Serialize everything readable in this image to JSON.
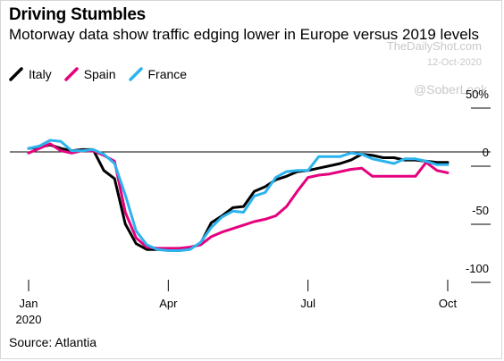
{
  "header": {
    "title": "Driving Stumbles",
    "subtitle": "Motorway data show traffic edging lower in Europe versus 2019 levels"
  },
  "watermark": {
    "line1": "TheDailyShot.com",
    "date": "12-Oct-2020",
    "handle": "@SoberLook"
  },
  "footer": {
    "source": "Source: Atlantia"
  },
  "chart_data": {
    "type": "line",
    "title": "Driving Stumbles",
    "subtitle": "Motorway data show traffic edging lower in Europe versus 2019 levels",
    "x_ticks": [
      {
        "label": "Jan",
        "sublabel": "2020",
        "week": 0
      },
      {
        "label": "Apr",
        "sublabel": "",
        "week": 13
      },
      {
        "label": "Jul",
        "sublabel": "",
        "week": 26
      },
      {
        "label": "Oct",
        "sublabel": "",
        "week": 39
      }
    ],
    "y_ticks": [
      50,
      0,
      -50,
      -100
    ],
    "y_tick_labels": [
      "50%",
      "0",
      "-50",
      "-100"
    ],
    "ylim": [
      -100,
      50
    ],
    "xlim": [
      0,
      39
    ],
    "grid": false,
    "legend_position": "top-left",
    "series": [
      {
        "name": "Italy",
        "color": "#000000",
        "x": [
          0,
          1,
          2,
          3,
          4,
          5,
          6,
          7,
          8,
          9,
          10,
          11,
          12,
          13,
          14,
          15,
          16,
          17,
          18,
          19,
          20,
          21,
          22,
          23,
          24,
          25,
          26,
          27,
          28,
          29,
          30,
          31,
          32,
          33,
          34,
          35,
          36,
          37,
          38,
          39
        ],
        "y": [
          3,
          4,
          6,
          3,
          1,
          2,
          2,
          -16,
          -23,
          -62,
          -79,
          -84,
          -84,
          -84,
          -85,
          -83,
          -79,
          -61,
          -55,
          -48,
          -47,
          -34,
          -30,
          -24,
          -21,
          -17,
          -16,
          -14,
          -12,
          -10,
          -7,
          -2,
          -3,
          -5,
          -5,
          -7,
          -7,
          -8,
          -9,
          -9
        ]
      },
      {
        "name": "Spain",
        "color": "#e5007d",
        "x": [
          0,
          1,
          2,
          3,
          4,
          5,
          6,
          7,
          8,
          9,
          10,
          11,
          12,
          13,
          14,
          15,
          16,
          17,
          18,
          19,
          20,
          21,
          22,
          23,
          24,
          25,
          26,
          27,
          28,
          29,
          30,
          31,
          32,
          33,
          34,
          35,
          36,
          37,
          38,
          39
        ],
        "y": [
          -1,
          3,
          7,
          1,
          -1,
          1,
          1,
          -3,
          -8,
          -52,
          -74,
          -82,
          -83,
          -83,
          -83,
          -82,
          -80,
          -73,
          -69,
          -66,
          -63,
          -60,
          -58,
          -55,
          -47,
          -34,
          -22,
          -20,
          -19,
          -17,
          -15,
          -14,
          -21,
          -21,
          -21,
          -21,
          -21,
          -9,
          -16,
          -18
        ]
      },
      {
        "name": "France",
        "color": "#2bb3ee",
        "x": [
          0,
          1,
          2,
          3,
          4,
          5,
          6,
          7,
          8,
          9,
          10,
          11,
          12,
          13,
          14,
          15,
          16,
          17,
          18,
          19,
          20,
          21,
          22,
          23,
          24,
          25,
          26,
          27,
          28,
          29,
          30,
          31,
          32,
          33,
          34,
          35,
          36,
          37,
          38,
          39
        ],
        "y": [
          3,
          5,
          10,
          9,
          1,
          1,
          2,
          -2,
          -10,
          -37,
          -68,
          -80,
          -84,
          -85,
          -85,
          -84,
          -78,
          -65,
          -56,
          -51,
          -52,
          -38,
          -35,
          -22,
          -17,
          -16,
          -16,
          -4,
          -4,
          -4,
          -1,
          -2,
          -6,
          -8,
          -10,
          -6,
          -6,
          -8,
          -11,
          -11
        ]
      }
    ]
  }
}
